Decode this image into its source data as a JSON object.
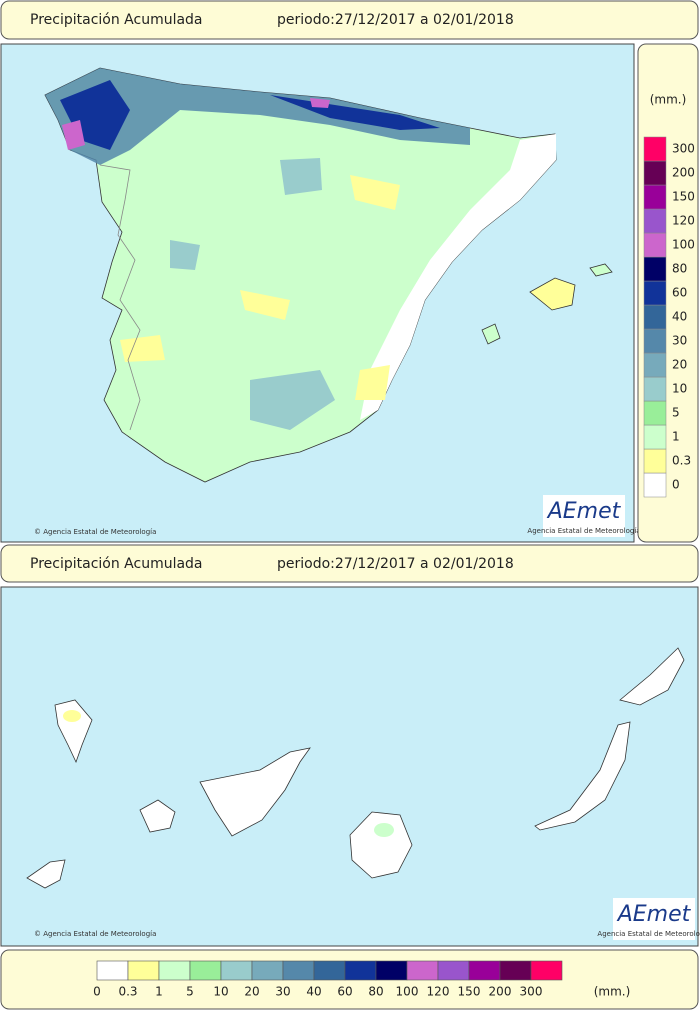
{
  "header": {
    "title": "Precipitación Acumulada",
    "period": "periodo:27/12/2017 a 02/01/2018"
  },
  "legend": {
    "unit": "(mm.)",
    "levels": [
      0,
      0.3,
      1,
      5,
      10,
      20,
      30,
      40,
      60,
      80,
      100,
      120,
      150,
      200,
      300
    ],
    "colors": [
      "#ffffff",
      "#ffff99",
      "#ccffcc",
      "#99ee99",
      "#99cccc",
      "#77aabb",
      "#5588aa",
      "#336699",
      "#113399",
      "#000066",
      "#cc66cc",
      "#9955cc",
      "#990099",
      "#660055",
      "#ff0066"
    ]
  },
  "credit": "Agencia Estatal de Meteorología",
  "logo": {
    "name": "AEmet",
    "subtitle": "Agencia Estatal de Meteorología"
  }
}
